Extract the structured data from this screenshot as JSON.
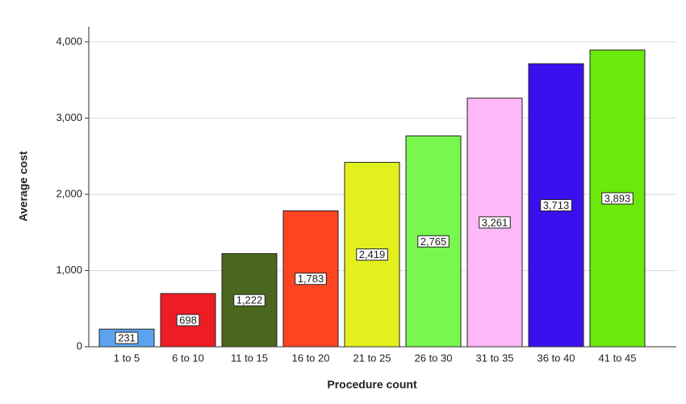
{
  "chart_data": {
    "type": "bar",
    "x_label": "Procedure count",
    "y_label": "Average cost",
    "categories": [
      "1 to 5",
      "6 to 10",
      "11 to 15",
      "16 to 20",
      "21 to 25",
      "26 to 30",
      "31 to 35",
      "36 to 40",
      "41 to 45"
    ],
    "values": [
      231,
      698,
      1222,
      1783,
      2419,
      2765,
      3261,
      3713,
      3893
    ],
    "value_labels": [
      "231",
      "698",
      "1,222",
      "1,783",
      "2,419",
      "2,765",
      "3,261",
      "3,713",
      "3,893"
    ],
    "colors": [
      "#5ba3ef",
      "#ee1c24",
      "#4a671e",
      "#ff4422",
      "#e2f01e",
      "#78f74e",
      "#fdb8f7",
      "#3a10ee",
      "#6ce80c"
    ],
    "ylim": [
      0,
      4200
    ],
    "yticks": [
      0,
      {
        "value": 1000,
        "label": "1,000"
      },
      {
        "value": 2000,
        "label": "2,000"
      },
      {
        "value": 3000,
        "label": "3,000"
      },
      {
        "value": 4000,
        "label": "4,000"
      }
    ],
    "grid": true
  }
}
